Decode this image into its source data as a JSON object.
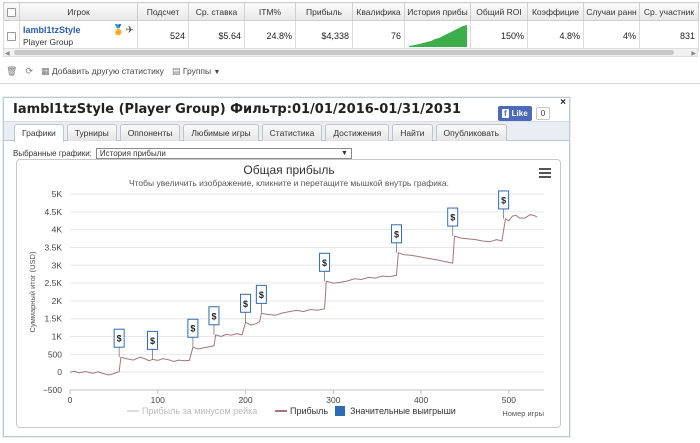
{
  "stats": {
    "headers": [
      {
        "key": "checkbox",
        "label": ""
      },
      {
        "key": "player",
        "label": "Игрок"
      },
      {
        "key": "count",
        "label": "Подсчет"
      },
      {
        "key": "avg_stake",
        "label": "Ср. ставка"
      },
      {
        "key": "itm",
        "label": "ITM%"
      },
      {
        "key": "profit",
        "label": "Прибыль"
      },
      {
        "key": "qualif",
        "label": "Квалифика"
      },
      {
        "key": "history",
        "label": "История прибы"
      },
      {
        "key": "roi",
        "label": "Общий ROI"
      },
      {
        "key": "coef",
        "label": "Коэффицие"
      },
      {
        "key": "early",
        "label": "Случаи ранн"
      },
      {
        "key": "participants",
        "label": "Ср. участник"
      }
    ],
    "row": {
      "player_name": "Iambl1tzStyle",
      "player_group": "Player Group",
      "icons": [
        "trophy-icon",
        "bird-icon"
      ],
      "count": "524",
      "avg_stake": "$5.64",
      "itm": "24.8%",
      "profit": "$4,338",
      "qualif": "76",
      "roi": "150%",
      "coef": "4.8%",
      "early": "4%",
      "participants": "831"
    },
    "toolbar": {
      "add_label": "Добавить другую статистику",
      "groups_label": "Группы"
    }
  },
  "popup": {
    "title": "Iambl1tzStyle (Player Group) Фильтр:01/01/2016-01/31/2031",
    "close_label": "×",
    "fb_like_label": "Like",
    "fb_count": "0",
    "tabs": [
      "Графики",
      "Турниры",
      "Оппоненты",
      "Любимые игры",
      "Статистика",
      "Достижения",
      "Найти",
      "Опубликовать"
    ],
    "active_tab": 0,
    "select_label": "Выбранные графики:",
    "select_value": "История прибыли"
  },
  "chart_data": {
    "type": "line",
    "title": "Общая прибыль",
    "subtitle": "Чтобы увеличить изображение, кликните и перетащите мышкой внутрь графика.",
    "xlabel": "Номер игры",
    "ylabel": "Суммарный итог (USD)",
    "xlim": [
      0,
      540
    ],
    "ylim": [
      -500,
      5000
    ],
    "xticks": [
      0,
      100,
      200,
      300,
      400,
      500
    ],
    "yticks": [
      -500,
      0,
      500,
      1000,
      1500,
      2000,
      2500,
      3000,
      3500,
      4000,
      4500,
      5000
    ],
    "ytick_labels": [
      "−500",
      "0",
      "500",
      "1K",
      "1.5K",
      "2K",
      "2.5K",
      "3K",
      "3.5K",
      "4K",
      "4.5K",
      "5K"
    ],
    "grid": true,
    "legend_position": "bottom",
    "series": [
      {
        "name": "Прибыль за минусом рейка",
        "color": "#dddddd",
        "x": [],
        "y": []
      },
      {
        "name": "Прибыль",
        "color": "#a57676",
        "x": [
          0,
          5,
          10,
          18,
          26,
          32,
          38,
          44,
          50,
          56,
          58,
          64,
          72,
          80,
          86,
          90,
          94,
          100,
          106,
          112,
          118,
          124,
          130,
          136,
          140,
          146,
          152,
          158,
          164,
          166,
          172,
          178,
          184,
          190,
          196,
          200,
          206,
          212,
          216,
          218,
          226,
          234,
          242,
          250,
          258,
          266,
          274,
          282,
          290,
          292,
          300,
          308,
          316,
          324,
          332,
          340,
          348,
          356,
          364,
          372,
          374,
          380,
          388,
          396,
          404,
          412,
          420,
          428,
          436,
          438,
          446,
          454,
          462,
          470,
          478,
          486,
          492,
          496,
          500,
          504,
          508,
          512,
          518,
          524,
          528,
          532
        ],
        "y": [
          0,
          30,
          -20,
          20,
          -30,
          10,
          -40,
          -80,
          -40,
          20,
          420,
          380,
          340,
          420,
          370,
          320,
          360,
          330,
          380,
          350,
          300,
          340,
          320,
          330,
          700,
          650,
          680,
          710,
          740,
          1050,
          1000,
          1060,
          1040,
          1080,
          1050,
          1400,
          1320,
          1360,
          1420,
          1650,
          1620,
          1600,
          1660,
          1700,
          1740,
          1700,
          1760,
          1740,
          1780,
          2550,
          2500,
          2520,
          2560,
          2620,
          2600,
          2660,
          2640,
          2700,
          2680,
          2720,
          3350,
          3300,
          3280,
          3250,
          3210,
          3180,
          3140,
          3100,
          3060,
          3820,
          3760,
          3740,
          3720,
          3680,
          3660,
          3720,
          3680,
          4300,
          4250,
          4380,
          4400,
          4330,
          4320,
          4420,
          4400,
          4360
        ]
      },
      {
        "name": "Значительные выигрыши",
        "color": "#2f6ab5",
        "x": [
          56,
          94,
          140,
          164,
          200,
          218,
          290,
          372,
          436,
          494
        ],
        "y": [
          420,
          360,
          700,
          1050,
          1400,
          1650,
          2550,
          3350,
          3820,
          4300
        ]
      }
    ],
    "flag_label": "$"
  }
}
